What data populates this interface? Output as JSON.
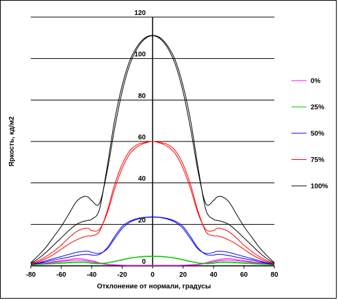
{
  "chart_data": {
    "type": "line",
    "title": "",
    "xlabel": "Отклонение от нормали, градусы",
    "ylabel": "Яркость, кд/м2",
    "xlim": [
      -80,
      80
    ],
    "ylim": [
      0,
      120
    ],
    "x_ticks": [
      -80,
      -60,
      -40,
      -20,
      0,
      20,
      40,
      60,
      80
    ],
    "y_ticks": [
      0,
      20,
      40,
      60,
      80,
      100,
      120
    ],
    "grid": "horizontal",
    "legend": "right",
    "x": [
      -80,
      -75,
      -70,
      -65,
      -60,
      -55,
      -50,
      -45,
      -42,
      -40,
      -35,
      -30,
      -25,
      -20,
      -15,
      -10,
      -5,
      0,
      5,
      10,
      15,
      20,
      25,
      30,
      35,
      40,
      42,
      45,
      50,
      55,
      60,
      65,
      70,
      75,
      80
    ],
    "series": [
      {
        "name": "0%",
        "color": "#ff00ff",
        "values": [
          0.8,
          1.2,
          1.5,
          2.0,
          2.5,
          3.0,
          3.5,
          3.2,
          2.8,
          2.5,
          1.5,
          0.8,
          0.5,
          0.3,
          0.2,
          0.2,
          0.2,
          0.2,
          0.2,
          0.2,
          0.2,
          0.3,
          0.5,
          0.8,
          1.5,
          2.5,
          2.8,
          3.2,
          3.5,
          3.0,
          2.5,
          2.0,
          1.5,
          1.2,
          0.8
        ],
        "values_b": [
          0.6,
          1.0,
          1.3,
          1.7,
          2.1,
          2.5,
          2.8,
          2.6,
          2.3,
          2.0,
          1.2,
          0.6,
          0.4,
          0.3,
          0.2,
          0.2,
          0.2,
          0.2,
          0.2,
          0.2,
          0.2,
          0.3,
          0.4,
          0.6,
          1.2,
          2.0,
          2.3,
          2.6,
          2.8,
          2.5,
          2.1,
          1.7,
          1.3,
          1.0,
          0.6
        ]
      },
      {
        "name": "25%",
        "color": "#00cc00",
        "values": [
          0.5,
          0.8,
          1.0,
          1.3,
          1.5,
          1.8,
          2.0,
          2.0,
          1.8,
          1.5,
          1.2,
          1.5,
          2.2,
          3.0,
          3.8,
          4.3,
          4.6,
          4.7,
          4.6,
          4.3,
          3.8,
          3.0,
          2.2,
          1.5,
          1.2,
          1.5,
          1.8,
          2.0,
          2.0,
          1.8,
          1.5,
          1.3,
          1.0,
          0.8,
          0.5
        ],
        "values_b": [
          0.4,
          0.6,
          0.8,
          1.0,
          1.2,
          1.4,
          1.5,
          1.5,
          1.4,
          1.2,
          1.0,
          1.3,
          2.0,
          2.8,
          3.6,
          4.1,
          4.4,
          4.5,
          4.4,
          4.1,
          3.6,
          2.8,
          2.0,
          1.3,
          1.0,
          1.2,
          1.4,
          1.5,
          1.5,
          1.4,
          1.2,
          1.0,
          0.8,
          0.6,
          0.4
        ]
      },
      {
        "name": "50%",
        "color": "#0000ff",
        "values": [
          0.8,
          1.5,
          2.5,
          3.5,
          4.5,
          5.5,
          6.5,
          7.0,
          7.0,
          6.5,
          6.0,
          8.0,
          13.0,
          18.0,
          21.0,
          22.5,
          23.3,
          23.5,
          23.3,
          22.5,
          21.0,
          18.0,
          13.0,
          8.0,
          6.0,
          6.5,
          7.0,
          7.0,
          6.5,
          5.5,
          4.5,
          3.5,
          2.5,
          1.5,
          0.8
        ],
        "values_b": [
          0.6,
          1.2,
          2.0,
          2.8,
          3.5,
          4.2,
          5.0,
          5.5,
          5.5,
          5.2,
          5.5,
          8.5,
          14.0,
          19.0,
          21.5,
          22.8,
          23.4,
          23.6,
          23.4,
          22.8,
          21.5,
          19.0,
          14.0,
          8.5,
          5.5,
          5.2,
          5.5,
          5.5,
          5.0,
          4.2,
          3.5,
          2.8,
          2.0,
          1.2,
          0.6
        ]
      },
      {
        "name": "75%",
        "color": "#ff0000",
        "values": [
          1.0,
          2.5,
          4.5,
          7.0,
          10.0,
          13.5,
          16.5,
          18.0,
          18.0,
          17.0,
          17.5,
          25.0,
          37.0,
          47.0,
          54.0,
          57.5,
          59.2,
          60.0,
          59.2,
          57.5,
          54.0,
          47.0,
          37.0,
          25.0,
          17.5,
          17.0,
          18.0,
          18.0,
          16.5,
          13.5,
          10.0,
          7.0,
          4.5,
          2.5,
          1.0
        ],
        "values_b": [
          0.8,
          2.0,
          3.5,
          5.5,
          8.0,
          10.5,
          12.5,
          14.0,
          14.5,
          14.5,
          16.5,
          26.0,
          39.0,
          49.0,
          55.5,
          58.5,
          59.5,
          60.0,
          59.5,
          58.5,
          55.5,
          49.0,
          39.0,
          26.0,
          16.5,
          14.5,
          14.5,
          14.0,
          12.5,
          10.5,
          8.0,
          5.5,
          3.5,
          2.0,
          0.8
        ]
      },
      {
        "name": "100%",
        "color": "#000000",
        "values": [
          1.5,
          5.0,
          9.0,
          14.0,
          19.0,
          25.0,
          31.0,
          33.5,
          33.0,
          31.5,
          30.0,
          45.0,
          66.0,
          84.0,
          97.0,
          105.0,
          109.5,
          111.0,
          109.5,
          105.0,
          97.0,
          84.0,
          66.0,
          45.0,
          30.0,
          31.5,
          33.0,
          33.5,
          31.0,
          25.0,
          19.0,
          14.0,
          9.0,
          5.0,
          1.5
        ],
        "values_b": [
          1.2,
          3.5,
          6.5,
          10.0,
          13.5,
          17.0,
          20.0,
          21.5,
          22.0,
          22.5,
          27.0,
          47.0,
          70.0,
          87.0,
          99.0,
          106.0,
          110.0,
          111.2,
          110.0,
          106.0,
          99.0,
          87.0,
          70.0,
          47.0,
          27.0,
          22.5,
          22.0,
          21.5,
          20.0,
          17.0,
          13.5,
          10.0,
          6.5,
          3.5,
          1.2
        ]
      }
    ]
  }
}
